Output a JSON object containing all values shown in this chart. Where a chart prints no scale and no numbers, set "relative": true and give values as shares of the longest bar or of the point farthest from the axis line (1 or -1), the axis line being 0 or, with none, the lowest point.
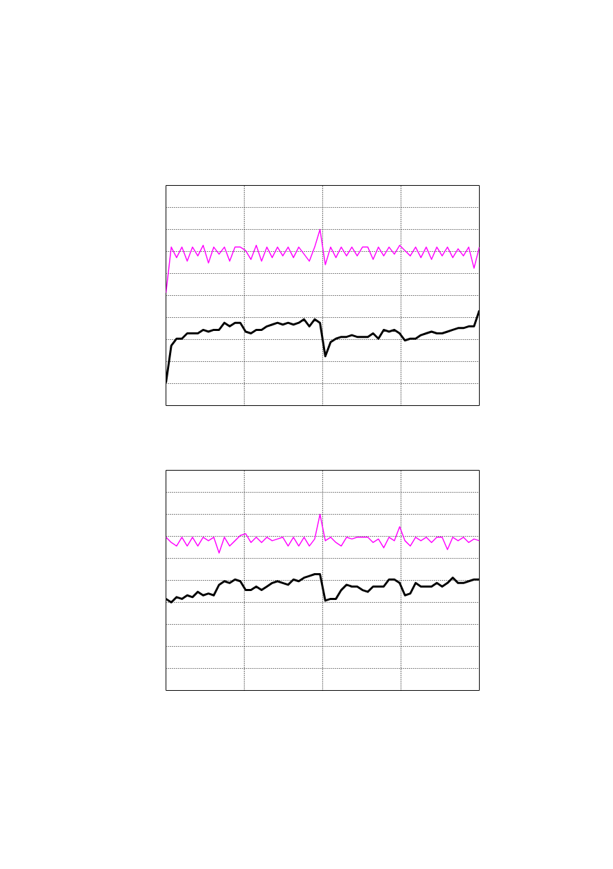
{
  "chart_data": [
    {
      "type": "line",
      "relative": true,
      "grid": true,
      "categories": [
        null,
        null,
        null,
        null,
        null,
        null,
        null,
        null,
        null,
        null,
        null,
        null,
        null,
        null,
        null,
        null,
        null,
        null,
        null,
        null,
        null,
        null,
        null,
        null,
        null,
        null,
        null,
        null,
        null,
        null,
        null,
        null,
        null,
        null,
        null,
        null,
        null,
        null,
        null,
        null,
        null,
        null,
        null,
        null,
        null,
        null,
        null,
        null,
        null,
        null,
        null,
        null,
        null,
        null,
        null,
        null,
        null,
        null,
        null,
        null
      ],
      "series": [
        {
          "color": "#000000",
          "values": [
            0.13,
            0.34,
            0.38,
            0.38,
            0.41,
            0.41,
            0.41,
            0.43,
            0.42,
            0.43,
            0.43,
            0.47,
            0.45,
            0.47,
            0.47,
            0.42,
            0.41,
            0.43,
            0.43,
            0.45,
            0.46,
            0.47,
            0.46,
            0.47,
            0.46,
            0.47,
            0.49,
            0.45,
            0.49,
            0.47,
            0.28,
            0.36,
            0.38,
            0.39,
            0.39,
            0.4,
            0.39,
            0.39,
            0.39,
            0.41,
            0.38,
            0.43,
            0.42,
            0.43,
            0.41,
            0.37,
            0.38,
            0.38,
            0.4,
            0.41,
            0.42,
            0.41,
            0.41,
            0.42,
            0.43,
            0.44,
            0.44,
            0.45,
            0.45,
            0.54
          ]
        },
        {
          "color": "#ff00ff",
          "values": [
            0.64,
            0.9,
            0.84,
            0.9,
            0.82,
            0.9,
            0.85,
            0.91,
            0.81,
            0.9,
            0.86,
            0.9,
            0.82,
            0.9,
            0.9,
            0.88,
            0.83,
            0.91,
            0.82,
            0.9,
            0.84,
            0.9,
            0.85,
            0.9,
            0.84,
            0.9,
            0.86,
            0.82,
            0.9,
            1.0,
            0.8,
            0.9,
            0.84,
            0.9,
            0.85,
            0.9,
            0.85,
            0.9,
            0.9,
            0.83,
            0.9,
            0.85,
            0.9,
            0.86,
            0.91,
            0.88,
            0.85,
            0.9,
            0.84,
            0.9,
            0.83,
            0.9,
            0.85,
            0.9,
            0.84,
            0.89,
            0.85,
            0.9,
            0.78,
            0.9
          ]
        }
      ]
    },
    {
      "type": "line",
      "relative": true,
      "grid": true,
      "categories": [
        null,
        null,
        null,
        null,
        null,
        null,
        null,
        null,
        null,
        null,
        null,
        null,
        null,
        null,
        null,
        null,
        null,
        null,
        null,
        null,
        null,
        null,
        null,
        null,
        null,
        null,
        null,
        null,
        null,
        null,
        null,
        null,
        null,
        null,
        null,
        null,
        null,
        null,
        null,
        null,
        null,
        null,
        null,
        null,
        null,
        null,
        null,
        null,
        null,
        null,
        null,
        null,
        null,
        null,
        null,
        null,
        null,
        null,
        null,
        null
      ],
      "series": [
        {
          "color": "#000000",
          "values": [
            0.52,
            0.5,
            0.53,
            0.52,
            0.54,
            0.53,
            0.56,
            0.54,
            0.55,
            0.54,
            0.6,
            0.62,
            0.61,
            0.63,
            0.62,
            0.57,
            0.57,
            0.59,
            0.57,
            0.59,
            0.61,
            0.62,
            0.61,
            0.6,
            0.63,
            0.62,
            0.64,
            0.65,
            0.66,
            0.66,
            0.51,
            0.52,
            0.52,
            0.57,
            0.6,
            0.59,
            0.59,
            0.57,
            0.56,
            0.59,
            0.59,
            0.59,
            0.63,
            0.63,
            0.61,
            0.54,
            0.55,
            0.61,
            0.59,
            0.59,
            0.59,
            0.61,
            0.59,
            0.61,
            0.64,
            0.61,
            0.61,
            0.62,
            0.63,
            0.63
          ]
        },
        {
          "color": "#ff00ff",
          "values": [
            0.87,
            0.84,
            0.82,
            0.87,
            0.82,
            0.87,
            0.82,
            0.87,
            0.85,
            0.87,
            0.78,
            0.87,
            0.82,
            0.85,
            0.88,
            0.89,
            0.84,
            0.87,
            0.84,
            0.87,
            0.85,
            0.86,
            0.87,
            0.82,
            0.87,
            0.82,
            0.87,
            0.82,
            0.86,
            1.0,
            0.85,
            0.87,
            0.84,
            0.82,
            0.87,
            0.86,
            0.87,
            0.87,
            0.87,
            0.84,
            0.86,
            0.81,
            0.87,
            0.85,
            0.93,
            0.85,
            0.82,
            0.87,
            0.85,
            0.87,
            0.84,
            0.87,
            0.87,
            0.8,
            0.87,
            0.85,
            0.87,
            0.84,
            0.86,
            0.85
          ]
        }
      ]
    }
  ]
}
